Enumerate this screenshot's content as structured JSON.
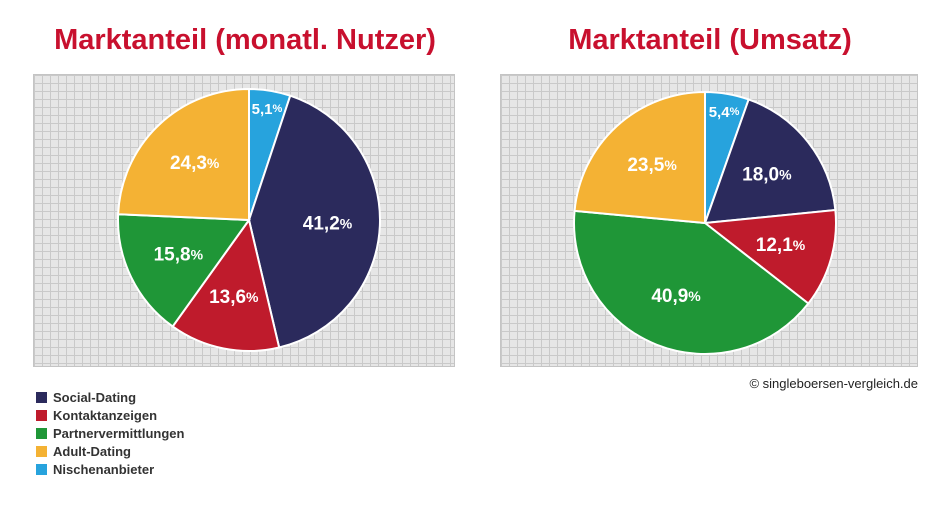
{
  "colors": {
    "Social-Dating": "#2b2a5c",
    "Kontaktanzeigen": "#bf1b2c",
    "Partnervermittlungen": "#1f9637",
    "Adult-Dating": "#f4b234",
    "Nischenanbieter": "#27a3dd",
    "title": "#c8102e"
  },
  "chart_data": [
    {
      "type": "pie",
      "title": "Marktanteil (monatl. Nutzer)",
      "labels": [
        "Nischenanbieter",
        "Social-Dating",
        "Kontaktanzeigen",
        "Partnervermittlungen",
        "Adult-Dating"
      ],
      "values": [
        5.1,
        41.2,
        13.6,
        15.8,
        24.3
      ],
      "value_labels": [
        "5,1%",
        "41,2%",
        "13,6%",
        "15,8%",
        "24,3%"
      ]
    },
    {
      "type": "pie",
      "title": "Marktanteil (Umsatz)",
      "labels": [
        "Nischenanbieter",
        "Social-Dating",
        "Kontaktanzeigen",
        "Partnervermittlungen",
        "Adult-Dating"
      ],
      "values": [
        5.4,
        18.0,
        12.1,
        40.9,
        23.5
      ],
      "value_labels": [
        "5,4%",
        "18,0%",
        "12,1%",
        "40,9%",
        "23,5%"
      ]
    }
  ],
  "legend": [
    {
      "label": "Social-Dating",
      "color": "#2b2a5c"
    },
    {
      "label": "Kontaktanzeigen",
      "color": "#bf1b2c"
    },
    {
      "label": "Partnervermittlungen",
      "color": "#1f9637"
    },
    {
      "label": "Adult-Dating",
      "color": "#f4b234"
    },
    {
      "label": "Nischenanbieter",
      "color": "#27a3dd"
    }
  ],
  "copyright": "© singleboersen-vergleich.de"
}
